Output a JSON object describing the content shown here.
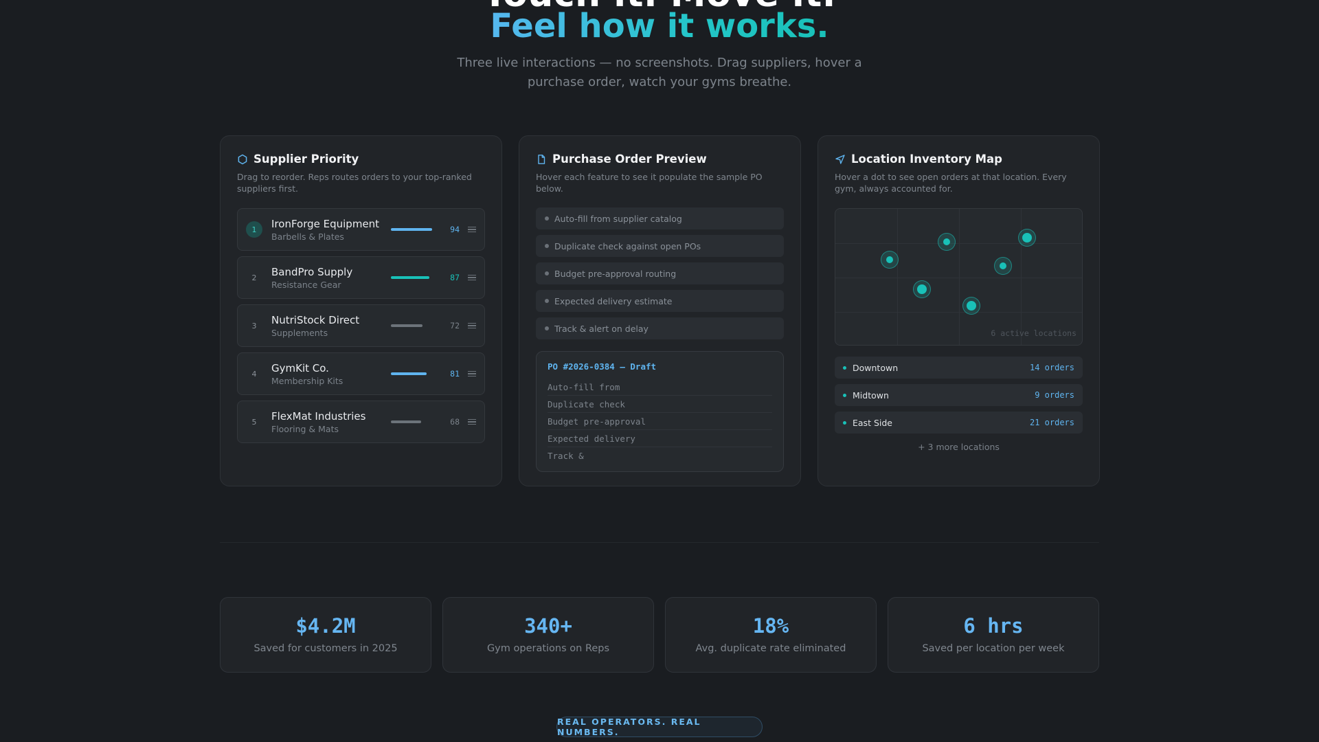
{
  "hero": {
    "title_line1": "Touch it. Move it.",
    "title_line2": "Feel how it works.",
    "subtitle": "Three live interactions — no screenshots. Drag suppliers, hover a purchase order, watch your gyms breathe."
  },
  "suppliers": {
    "icon": "hexagon-icon",
    "title": "Supplier Priority",
    "subtitle": "Drag to reorder. Reps routes orders to your top-ranked suppliers first.",
    "items": [
      {
        "rank": "1",
        "name": "IronForge Equipment",
        "category": "Barbells & Plates",
        "score": 94,
        "score_label": "94",
        "color": "#5fb4ef"
      },
      {
        "rank": "2",
        "name": "BandPro Supply",
        "category": "Resistance Gear",
        "score": 87,
        "score_label": "87",
        "color": "#19c1b8"
      },
      {
        "rank": "3",
        "name": "NutriStock Direct",
        "category": "Supplements",
        "score": 72,
        "score_label": "72",
        "color": "#6c737a"
      },
      {
        "rank": "4",
        "name": "GymKit Co.",
        "category": "Membership Kits",
        "score": 81,
        "score_label": "81",
        "color": "#5fb4ef"
      },
      {
        "rank": "5",
        "name": "FlexMat Industries",
        "category": "Flooring & Mats",
        "score": 68,
        "score_label": "68",
        "color": "#6c737a"
      }
    ]
  },
  "purchase_order": {
    "icon": "document-icon",
    "title": "Purchase Order Preview",
    "subtitle": "Hover each feature to see it populate the sample PO below.",
    "features": [
      "Auto-fill from supplier catalog",
      "Duplicate check against open POs",
      "Budget pre-approval routing",
      "Expected delivery estimate",
      "Track & alert on delay"
    ],
    "po_header": "PO #2026-0384 — Draft",
    "po_lines": [
      "Auto-fill from",
      "Duplicate check",
      "Budget pre-approval",
      "Expected delivery",
      "Track &"
    ]
  },
  "map": {
    "icon": "navigation-arrow-icon",
    "title": "Location Inventory Map",
    "subtitle": "Hover a dot to see open orders at that location. Every gym, always accounted for.",
    "map_label": "6 active locations",
    "locations": [
      {
        "name": "Downtown",
        "orders": "14 orders"
      },
      {
        "name": "Midtown",
        "orders": "9 orders"
      },
      {
        "name": "East Side",
        "orders": "21 orders"
      }
    ],
    "more": "+ 3 more locations"
  },
  "stats": [
    {
      "value": "$4.2M",
      "label": "Saved for customers in 2025"
    },
    {
      "value": "340+",
      "label": "Gym operations on Reps"
    },
    {
      "value": "18%",
      "label": "Avg. duplicate rate eliminated"
    },
    {
      "value": "6 hrs",
      "label": "Saved per location per week"
    }
  ],
  "badge": "REAL OPERATORS. REAL NUMBERS."
}
